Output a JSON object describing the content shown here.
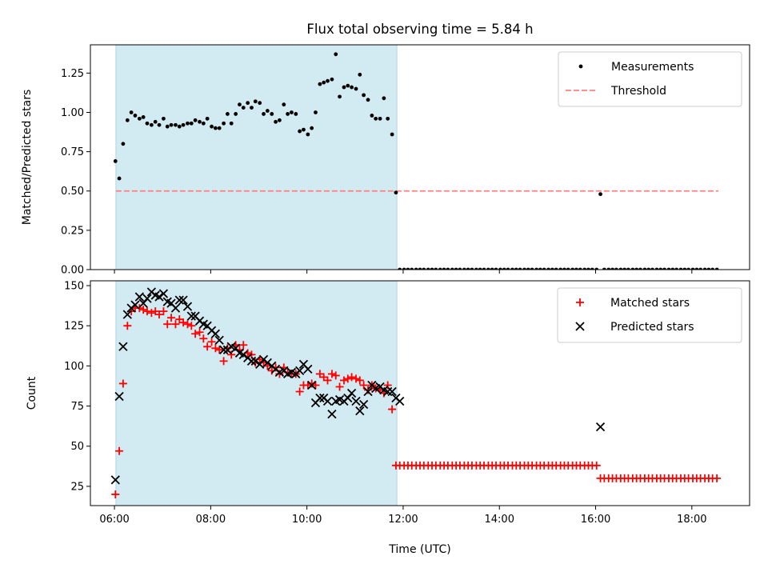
{
  "figure": {
    "title": "Flux total observing time = 5.84 h"
  },
  "chart_data": [
    {
      "type": "scatter",
      "panel": "top",
      "xlabel": "",
      "ylabel": "Matched/Predicted stars",
      "xlim": [
        5.5,
        19.2
      ],
      "ylim": [
        0.0,
        1.43
      ],
      "yticks": [
        0.0,
        0.25,
        0.5,
        0.75,
        1.0,
        1.25
      ],
      "ytick_labels": [
        "0.00",
        "0.25",
        "0.50",
        "0.75",
        "1.00",
        "1.25"
      ],
      "xticks": [
        6,
        8,
        10,
        12,
        14,
        16,
        18
      ],
      "xtick_labels": [
        "",
        "",
        "",
        "",
        "",
        "",
        ""
      ],
      "shaded_interval": [
        6.03,
        11.87
      ],
      "shaded_color": "#add8e6",
      "grid": false,
      "legend_position": "top-right",
      "threshold": {
        "name": "Threshold",
        "value": 0.5,
        "x_range": [
          6.03,
          18.55
        ],
        "color": "#ff8080"
      },
      "series": [
        {
          "name": "Measurements",
          "color": "#000000",
          "marker": "dot",
          "x": [
            6.02,
            6.1,
            6.18,
            6.27,
            6.35,
            6.43,
            6.52,
            6.6,
            6.68,
            6.77,
            6.85,
            6.93,
            7.02,
            7.1,
            7.18,
            7.27,
            7.35,
            7.43,
            7.52,
            7.6,
            7.68,
            7.77,
            7.85,
            7.93,
            8.02,
            8.1,
            8.18,
            8.27,
            8.35,
            8.43,
            8.52,
            8.6,
            8.68,
            8.77,
            8.85,
            8.93,
            9.02,
            9.1,
            9.18,
            9.27,
            9.35,
            9.43,
            9.52,
            9.6,
            9.68,
            9.77,
            9.85,
            9.93,
            10.02,
            10.1,
            10.18,
            10.27,
            10.35,
            10.43,
            10.52,
            10.6,
            10.68,
            10.77,
            10.85,
            10.93,
            11.02,
            11.1,
            11.18,
            11.27,
            11.35,
            11.43,
            11.52,
            11.6,
            11.68,
            11.77,
            11.85,
            11.93,
            12.02,
            12.1,
            12.18,
            12.27,
            12.35,
            12.43,
            12.52,
            12.6,
            12.68,
            12.77,
            12.85,
            12.93,
            13.02,
            13.1,
            13.18,
            13.27,
            13.35,
            13.43,
            13.52,
            13.6,
            13.68,
            13.77,
            13.85,
            13.93,
            14.02,
            14.1,
            14.18,
            14.27,
            14.35,
            14.43,
            14.52,
            14.6,
            14.68,
            14.77,
            14.85,
            14.93,
            15.02,
            15.1,
            15.18,
            15.27,
            15.35,
            15.43,
            15.52,
            15.6,
            15.68,
            15.77,
            15.85,
            15.93,
            16.02,
            16.1,
            16.18,
            16.27,
            16.35,
            16.43,
            16.52,
            16.6,
            16.68,
            16.77,
            16.85,
            16.93,
            17.02,
            17.1,
            17.18,
            17.27,
            17.35,
            17.43,
            17.52,
            17.6,
            17.68,
            17.77,
            17.85,
            17.93,
            18.02,
            18.1,
            18.18,
            18.27,
            18.35,
            18.43,
            18.52
          ],
          "y": [
            0.69,
            0.58,
            0.8,
            0.95,
            1.0,
            0.98,
            0.96,
            0.97,
            0.93,
            0.92,
            0.94,
            0.92,
            0.96,
            0.91,
            0.92,
            0.92,
            0.91,
            0.92,
            0.93,
            0.93,
            0.95,
            0.94,
            0.93,
            0.96,
            0.91,
            0.9,
            0.9,
            0.93,
            0.99,
            0.93,
            0.99,
            1.05,
            1.03,
            1.06,
            1.03,
            1.07,
            1.06,
            0.99,
            1.01,
            0.99,
            0.94,
            0.95,
            1.05,
            0.99,
            1.0,
            0.99,
            0.88,
            0.89,
            0.86,
            0.9,
            1.0,
            1.18,
            1.19,
            1.2,
            1.21,
            1.37,
            1.1,
            1.16,
            1.17,
            1.16,
            1.15,
            1.24,
            1.11,
            1.08,
            0.98,
            0.96,
            0.96,
            1.09,
            0.96,
            0.86,
            0.49,
            0.0,
            0.0,
            0.0,
            0.0,
            0.0,
            0.0,
            0.0,
            0.0,
            0.0,
            0.0,
            0.0,
            0.0,
            0.0,
            0.0,
            0.0,
            0.0,
            0.0,
            0.0,
            0.0,
            0.0,
            0.0,
            0.0,
            0.0,
            0.0,
            0.0,
            0.0,
            0.0,
            0.0,
            0.0,
            0.0,
            0.0,
            0.0,
            0.0,
            0.0,
            0.0,
            0.0,
            0.0,
            0.0,
            0.0,
            0.0,
            0.0,
            0.0,
            0.0,
            0.0,
            0.0,
            0.0,
            0.0,
            0.0,
            0.0,
            0.0,
            0.48,
            0.0,
            0.0,
            0.0,
            0.0,
            0.0,
            0.0,
            0.0,
            0.0,
            0.0,
            0.0,
            0.0,
            0.0,
            0.0,
            0.0,
            0.0,
            0.0,
            0.0,
            0.0,
            0.0,
            0.0,
            0.0,
            0.0,
            0.0,
            0.0,
            0.0,
            0.0,
            0.0,
            0.0,
            0.0
          ]
        }
      ]
    },
    {
      "type": "scatter",
      "panel": "bottom",
      "xlabel": "Time (UTC)",
      "ylabel": "Count",
      "xlim": [
        5.5,
        19.2
      ],
      "ylim": [
        13,
        153
      ],
      "yticks": [
        25,
        50,
        75,
        100,
        125,
        150
      ],
      "ytick_labels": [
        "25",
        "50",
        "75",
        "100",
        "125",
        "150"
      ],
      "xticks": [
        6,
        8,
        10,
        12,
        14,
        16,
        18
      ],
      "xtick_labels": [
        "06:00",
        "08:00",
        "10:00",
        "12:00",
        "14:00",
        "16:00",
        "18:00"
      ],
      "shaded_interval": [
        6.03,
        11.87
      ],
      "shaded_color": "#add8e6",
      "grid": false,
      "legend_position": "top-right",
      "series": [
        {
          "name": "Matched stars",
          "color": "#ff0000",
          "marker": "plus",
          "x": [
            6.02,
            6.1,
            6.18,
            6.27,
            6.35,
            6.43,
            6.52,
            6.6,
            6.68,
            6.77,
            6.85,
            6.93,
            7.02,
            7.1,
            7.18,
            7.27,
            7.35,
            7.43,
            7.52,
            7.6,
            7.68,
            7.77,
            7.85,
            7.93,
            8.02,
            8.1,
            8.18,
            8.27,
            8.35,
            8.43,
            8.52,
            8.6,
            8.68,
            8.77,
            8.85,
            8.93,
            9.02,
            9.1,
            9.18,
            9.27,
            9.35,
            9.43,
            9.52,
            9.6,
            9.68,
            9.77,
            9.85,
            9.93,
            10.02,
            10.1,
            10.18,
            10.27,
            10.35,
            10.43,
            10.52,
            10.6,
            10.68,
            10.77,
            10.85,
            10.93,
            11.02,
            11.1,
            11.18,
            11.27,
            11.35,
            11.43,
            11.52,
            11.6,
            11.68,
            11.77,
            11.85,
            11.93,
            12.02,
            12.1,
            12.18,
            12.27,
            12.35,
            12.43,
            12.52,
            12.6,
            12.68,
            12.77,
            12.85,
            12.93,
            13.02,
            13.1,
            13.18,
            13.27,
            13.35,
            13.43,
            13.52,
            13.6,
            13.68,
            13.77,
            13.85,
            13.93,
            14.02,
            14.1,
            14.18,
            14.27,
            14.35,
            14.43,
            14.52,
            14.6,
            14.68,
            14.77,
            14.85,
            14.93,
            15.02,
            15.1,
            15.18,
            15.27,
            15.35,
            15.43,
            15.52,
            15.6,
            15.68,
            15.77,
            15.85,
            15.93,
            16.02,
            16.1,
            16.18,
            16.27,
            16.35,
            16.43,
            16.52,
            16.6,
            16.68,
            16.77,
            16.85,
            16.93,
            17.02,
            17.1,
            17.18,
            17.27,
            17.35,
            17.43,
            17.52,
            17.6,
            17.68,
            17.77,
            17.85,
            17.93,
            18.02,
            18.1,
            18.18,
            18.27,
            18.35,
            18.43,
            18.52
          ],
          "y": [
            20,
            47,
            89,
            125,
            134,
            136,
            136,
            135,
            134,
            133,
            134,
            132,
            134,
            126,
            130,
            126,
            129,
            127,
            126,
            125,
            120,
            121,
            117,
            112,
            115,
            111,
            110,
            103,
            111,
            107,
            113,
            110,
            113,
            108,
            107,
            102,
            104,
            102,
            100,
            97,
            99,
            95,
            99,
            96,
            95,
            95,
            84,
            88,
            88,
            89,
            88,
            95,
            93,
            91,
            95,
            94,
            87,
            91,
            92,
            93,
            92,
            91,
            88,
            85,
            88,
            86,
            85,
            83,
            88,
            73,
            38,
            38,
            38,
            38,
            38,
            38,
            38,
            38,
            38,
            38,
            38,
            38,
            38,
            38,
            38,
            38,
            38,
            38,
            38,
            38,
            38,
            38,
            38,
            38,
            38,
            38,
            38,
            38,
            38,
            38,
            38,
            38,
            38,
            38,
            38,
            38,
            38,
            38,
            38,
            38,
            38,
            38,
            38,
            38,
            38,
            38,
            38,
            38,
            38,
            38,
            38,
            30,
            30,
            30,
            30,
            30,
            30,
            30,
            30,
            30,
            30,
            30,
            30,
            30,
            30,
            30,
            30,
            30,
            30,
            30,
            30,
            30,
            30,
            30,
            30,
            30,
            30,
            30,
            30,
            30,
            30
          ]
        },
        {
          "name": "Predicted stars",
          "color": "#000000",
          "marker": "x",
          "x": [
            6.02,
            6.1,
            6.18,
            6.27,
            6.35,
            6.43,
            6.52,
            6.6,
            6.68,
            6.77,
            6.85,
            6.93,
            7.02,
            7.1,
            7.18,
            7.27,
            7.35,
            7.43,
            7.52,
            7.6,
            7.68,
            7.77,
            7.85,
            7.93,
            8.02,
            8.1,
            8.18,
            8.27,
            8.35,
            8.43,
            8.52,
            8.6,
            8.68,
            8.77,
            8.85,
            8.93,
            9.02,
            9.1,
            9.18,
            9.27,
            9.35,
            9.43,
            9.52,
            9.6,
            9.68,
            9.77,
            9.85,
            9.93,
            10.02,
            10.1,
            10.18,
            10.27,
            10.35,
            10.43,
            10.52,
            10.6,
            10.68,
            10.77,
            10.85,
            10.93,
            11.02,
            11.1,
            11.18,
            11.27,
            11.35,
            11.43,
            11.52,
            11.6,
            11.68,
            11.77,
            11.85,
            11.93,
            16.1
          ],
          "y": [
            29,
            81,
            112,
            132,
            136,
            138,
            143,
            139,
            142,
            146,
            144,
            143,
            145,
            140,
            139,
            136,
            141,
            141,
            137,
            131,
            131,
            128,
            126,
            125,
            122,
            120,
            116,
            110,
            110,
            112,
            111,
            108,
            107,
            105,
            103,
            103,
            101,
            104,
            102,
            100,
            98,
            96,
            97,
            95,
            96,
            95,
            97,
            101,
            98,
            88,
            77,
            80,
            80,
            78,
            70,
            78,
            79,
            78,
            80,
            83,
            78,
            72,
            76,
            84,
            88,
            86,
            87,
            85,
            84,
            84,
            80,
            78,
            62
          ]
        }
      ]
    }
  ]
}
